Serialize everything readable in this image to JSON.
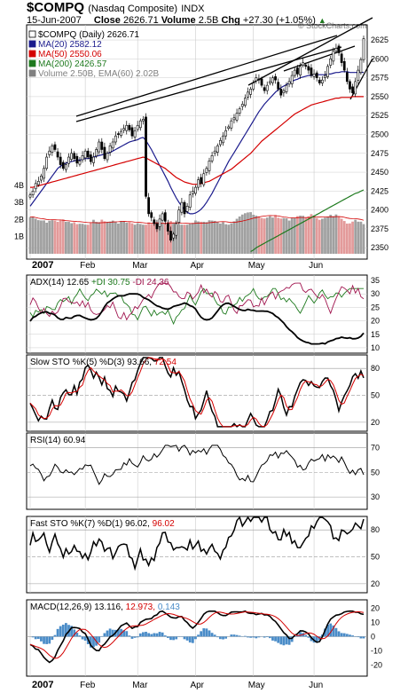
{
  "header": {
    "symbol": "$COMPQ",
    "name": "(Nasdaq Composite)",
    "exchange": "INDX",
    "date": "15-Jun-2007",
    "close_label": "Close",
    "close": "2626.71",
    "volume_label": "Volume",
    "volume": "2.5B",
    "chg_label": "Chg",
    "chg": "+27.30 (+1.05%)",
    "chg_arrow": "▲",
    "watermark": "© StockCharts.com"
  },
  "colors": {
    "up_candle": "#ffffff",
    "down_candle": "#000000",
    "ma20": "#1a1a8c",
    "ma50": "#d40000",
    "ma200": "#1e7a1e",
    "volume_up": "#a0a0a0",
    "volume_down": "#e39a9a",
    "adx": "#000000",
    "plus_di": "#1e7a1e",
    "minus_di": "#a0144e",
    "stoch_k": "#000000",
    "stoch_d": "#d40000",
    "histogram": "#4a8cc8",
    "grid": "#cccccc"
  },
  "price_panel": {
    "legend": [
      {
        "label": "$COMPQ (Daily) 2626.71",
        "color": "#000000",
        "icon": "candle-icon"
      },
      {
        "label": "MA(20) 2582.12",
        "color": "#1a1a8c",
        "icon": "line-swatch"
      },
      {
        "label": "MA(50) 2550.06",
        "color": "#d40000",
        "icon": "line-swatch"
      },
      {
        "label": "MA(200) 2426.57",
        "color": "#1e7a1e",
        "icon": "line-swatch"
      },
      {
        "label": "Volume 2.50B, EMA(60) 2.02B",
        "color": "#808080",
        "icon": "bar-swatch"
      }
    ],
    "y_ticks": [
      2350,
      2375,
      2400,
      2425,
      2450,
      2475,
      2500,
      2525,
      2550,
      2575,
      2600,
      2625
    ],
    "volume_ticks": [
      "1B",
      "2B",
      "3B",
      "4B"
    ],
    "x_labels": [
      "2007",
      "Feb",
      "Mar",
      "Apr",
      "May",
      "Jun"
    ]
  },
  "indicators": {
    "adx": {
      "title": "ADX(14) 12.65",
      "plus": "+DI 30.75",
      "minus": "-DI 24.36",
      "ticks": [
        10,
        15,
        20,
        25,
        30,
        35
      ]
    },
    "slow_sto": {
      "title": "Slow STO %K(5) %D(3) 93.66,",
      "d_value": "72.54",
      "ticks": [
        20,
        50,
        80
      ]
    },
    "rsi": {
      "title": "RSI(14) 60.94",
      "ticks": [
        30,
        50,
        70
      ]
    },
    "fast_sto": {
      "title": "Fast STO %K(7) %D(1) 96.02,",
      "d_value": "96.02",
      "ticks": [
        20,
        50,
        80
      ]
    },
    "macd": {
      "title": "MACD(12,26,9) 13.116,",
      "signal": "12.973",
      "hist": "0.143",
      "ticks": [
        -20,
        -10,
        0,
        10,
        20
      ]
    }
  },
  "bottom_axis": {
    "labels": [
      "2007",
      "Feb",
      "Mar",
      "Apr",
      "May",
      "Jun"
    ]
  },
  "chart_data": {
    "type": "line",
    "title": "$COMPQ (Nasdaq Composite) INDX",
    "start_date": "2007-01-03",
    "x_labels": [
      "2007",
      "Feb",
      "Mar",
      "Apr",
      "May",
      "Jun"
    ],
    "ylim": [
      2335,
      2645
    ],
    "series": [
      {
        "name": "$COMPQ (Daily)",
        "values": [
          2420,
          2425,
          2435,
          2438,
          2445,
          2455,
          2470,
          2478,
          2485,
          2480,
          2470,
          2460,
          2455,
          2460,
          2470,
          2475,
          2468,
          2462,
          2465,
          2472,
          2478,
          2470,
          2464,
          2470,
          2480,
          2490,
          2480,
          2468,
          2475,
          2485,
          2490,
          2498,
          2500,
          2504,
          2508,
          2512,
          2506,
          2498,
          2505,
          2512,
          2518,
          2520,
          2418,
          2395,
          2390,
          2382,
          2375,
          2388,
          2395,
          2385,
          2372,
          2360,
          2368,
          2382,
          2400,
          2410,
          2395,
          2405,
          2420,
          2425,
          2430,
          2440,
          2435,
          2448,
          2455,
          2465,
          2472,
          2478,
          2485,
          2492,
          2498,
          2505,
          2510,
          2518,
          2522,
          2528,
          2534,
          2540,
          2548,
          2556,
          2560,
          2568,
          2575,
          2572,
          2565,
          2558,
          2565,
          2570,
          2575,
          2572,
          2560,
          2552,
          2558,
          2565,
          2570,
          2578,
          2585,
          2580,
          2590,
          2595,
          2590,
          2585,
          2578,
          2580,
          2575,
          2568,
          2572,
          2578,
          2590,
          2600,
          2610,
          2614,
          2608,
          2595,
          2585,
          2570,
          2560,
          2555,
          2570,
          2585,
          2599,
          2626.71
        ]
      },
      {
        "name": "MA(20)",
        "values": [
          2405,
          2410,
          2415,
          2420,
          2425,
          2430,
          2435,
          2440,
          2445,
          2450,
          2455,
          2458,
          2460,
          2462,
          2463,
          2464,
          2465,
          2466,
          2466,
          2467,
          2468,
          2468,
          2469,
          2470,
          2471,
          2472,
          2473,
          2474,
          2475,
          2476,
          2478,
          2480,
          2482,
          2484,
          2486,
          2488,
          2490,
          2491,
          2492,
          2493,
          2495,
          2496,
          2492,
          2486,
          2480,
          2473,
          2466,
          2459,
          2452,
          2445,
          2438,
          2430,
          2423,
          2416,
          2410,
          2405,
          2400,
          2397,
          2395,
          2395,
          2396,
          2398,
          2401,
          2405,
          2410,
          2416,
          2422,
          2429,
          2436,
          2443,
          2450,
          2457,
          2464,
          2470,
          2476,
          2482,
          2488,
          2494,
          2500,
          2506,
          2512,
          2518,
          2524,
          2530,
          2535,
          2540,
          2544,
          2548,
          2552,
          2556,
          2559,
          2562,
          2564,
          2566,
          2568,
          2570,
          2572,
          2573,
          2575,
          2576,
          2577,
          2578,
          2578,
          2579,
          2579,
          2579,
          2579,
          2579,
          2580,
          2580,
          2581,
          2582,
          2582,
          2583,
          2583,
          2583,
          2582,
          2582,
          2582,
          2582,
          2582,
          2582.12
        ]
      },
      {
        "name": "MA(50)",
        "values": [
          2430,
          2430,
          2431,
          2432,
          2433,
          2434,
          2435,
          2436,
          2437,
          2438,
          2439,
          2440,
          2441,
          2442,
          2443,
          2444,
          2445,
          2446,
          2447,
          2448,
          2449,
          2450,
          2451,
          2452,
          2453,
          2454,
          2455,
          2456,
          2457,
          2458,
          2459,
          2460,
          2461,
          2462,
          2463,
          2464,
          2465,
          2466,
          2467,
          2468,
          2469,
          2470,
          2469,
          2467,
          2465,
          2463,
          2461,
          2459,
          2457,
          2455,
          2452,
          2449,
          2446,
          2443,
          2441,
          2439,
          2437,
          2436,
          2435,
          2434,
          2434,
          2434,
          2435,
          2436,
          2437,
          2438,
          2440,
          2442,
          2444,
          2446,
          2448,
          2450,
          2452,
          2454,
          2457,
          2460,
          2463,
          2466,
          2469,
          2472,
          2475,
          2479,
          2483,
          2487,
          2491,
          2494,
          2497,
          2500,
          2503,
          2506,
          2509,
          2512,
          2515,
          2518,
          2521,
          2524,
          2527,
          2529,
          2531,
          2533,
          2535,
          2537,
          2539,
          2540,
          2541,
          2542,
          2543,
          2544,
          2545,
          2546,
          2547,
          2548,
          2548,
          2549,
          2549,
          2549,
          2549,
          2550,
          2550,
          2550,
          2550,
          2550.06
        ]
      },
      {
        "name": "MA(200)",
        "values": [
          null,
          null,
          null,
          null,
          null,
          null,
          null,
          null,
          null,
          null,
          null,
          null,
          null,
          null,
          null,
          null,
          null,
          null,
          null,
          null,
          null,
          null,
          null,
          null,
          null,
          null,
          null,
          null,
          null,
          null,
          null,
          null,
          null,
          null,
          null,
          null,
          null,
          null,
          null,
          null,
          null,
          null,
          null,
          null,
          null,
          null,
          null,
          null,
          null,
          null,
          null,
          null,
          null,
          null,
          null,
          null,
          null,
          null,
          null,
          null,
          null,
          null,
          null,
          null,
          null,
          null,
          null,
          null,
          null,
          null,
          null,
          null,
          null,
          null,
          null,
          null,
          null,
          null,
          null,
          null,
          2345,
          2347,
          2350,
          2352,
          2354,
          2356,
          2358,
          2360,
          2362,
          2364,
          2366,
          2368,
          2370,
          2372,
          2374,
          2376,
          2378,
          2380,
          2382,
          2384,
          2386,
          2388,
          2390,
          2392,
          2394,
          2396,
          2398,
          2400,
          2402,
          2404,
          2406,
          2408,
          2410,
          2412,
          2414,
          2416,
          2418,
          2420,
          2422,
          2423,
          2425,
          2426.57
        ]
      }
    ]
  }
}
